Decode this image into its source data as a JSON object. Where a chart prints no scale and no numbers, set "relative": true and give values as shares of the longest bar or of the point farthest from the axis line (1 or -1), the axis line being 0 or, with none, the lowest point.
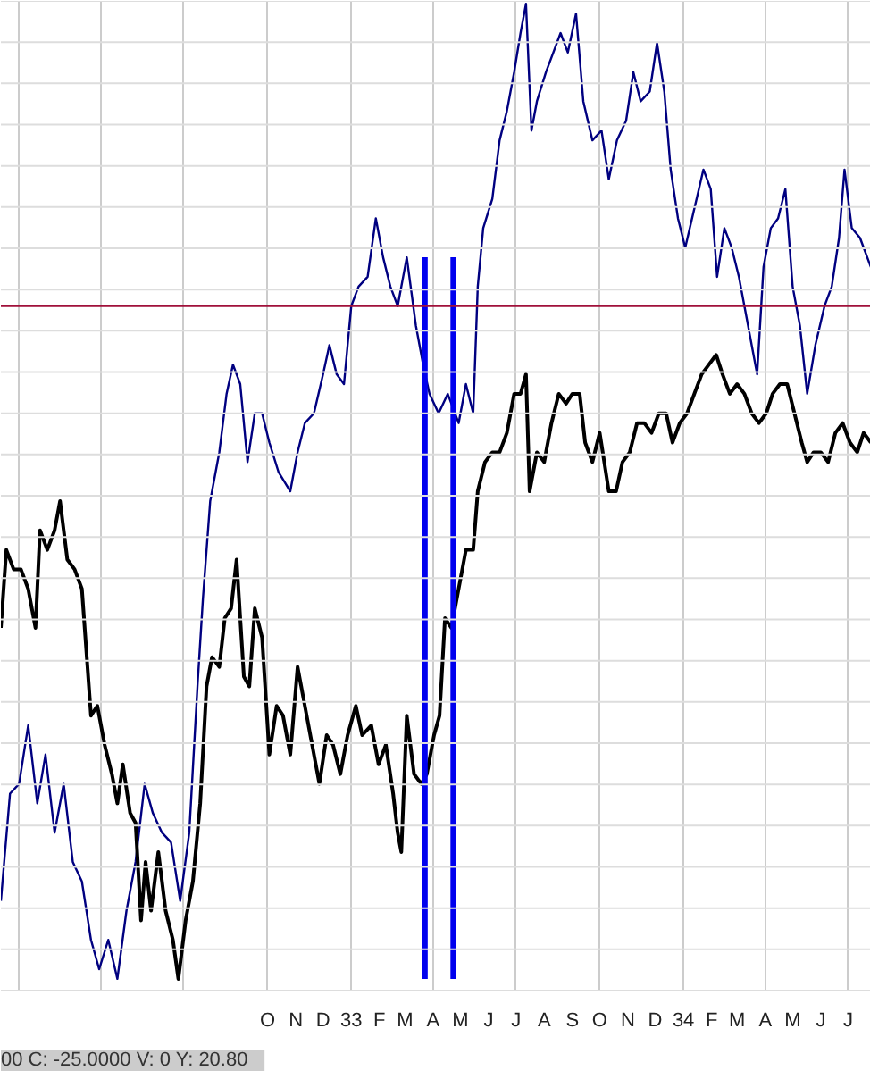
{
  "chart_data": {
    "type": "line",
    "relative": true,
    "grid": true,
    "xlim": [
      "1931-12-13",
      "1934-07-26"
    ],
    "xticks": [
      {
        "value": "1932-01-01",
        "label": null
      },
      {
        "value": "1932-04-01",
        "label": null
      },
      {
        "value": "1932-07-01",
        "label": null
      },
      {
        "value": "1932-10-01",
        "label": "O"
      },
      {
        "value": "1932-11-01",
        "label": "N"
      },
      {
        "value": "1932-12-01",
        "label": "D"
      },
      {
        "value": "1933-01-01",
        "label": "33"
      },
      {
        "value": "1933-02-01",
        "label": "F"
      },
      {
        "value": "1933-03-01",
        "label": "M"
      },
      {
        "value": "1933-04-01",
        "label": "A"
      },
      {
        "value": "1933-05-01",
        "label": "M"
      },
      {
        "value": "1933-06-01",
        "label": "J"
      },
      {
        "value": "1933-07-01",
        "label": "J"
      },
      {
        "value": "1933-08-01",
        "label": "A"
      },
      {
        "value": "1933-09-01",
        "label": "S"
      },
      {
        "value": "1933-10-01",
        "label": "O"
      },
      {
        "value": "1933-11-01",
        "label": "N"
      },
      {
        "value": "1933-12-01",
        "label": "D"
      },
      {
        "value": "1934-01-01",
        "label": "34"
      },
      {
        "value": "1934-02-01",
        "label": "F"
      },
      {
        "value": "1934-03-01",
        "label": "M"
      },
      {
        "value": "1934-04-01",
        "label": "A"
      },
      {
        "value": "1934-05-01",
        "label": "M"
      },
      {
        "value": "1934-06-01",
        "label": "J"
      },
      {
        "value": "1934-07-01",
        "label": "J"
      }
    ],
    "series": [
      {
        "color": "#000080",
        "x": [
          "1931-12-13",
          "1931-12-23",
          "1932-01-02",
          "1932-01-12",
          "1932-01-22",
          "1932-01-31",
          "1932-02-10",
          "1932-02-20",
          "1932-03-01",
          "1932-03-11",
          "1932-03-21",
          "1932-03-30",
          "1932-04-09",
          "1932-04-19",
          "1932-04-29",
          "1932-05-09",
          "1932-05-19",
          "1932-05-28",
          "1932-06-07",
          "1932-06-17",
          "1932-06-27",
          "1932-07-07",
          "1932-07-16",
          "1932-07-22",
          "1932-07-30",
          "1932-08-09",
          "1932-08-17",
          "1932-08-24",
          "1932-09-01",
          "1932-09-09",
          "1932-09-17",
          "1932-09-25",
          "1932-10-03",
          "1932-10-13",
          "1932-10-26",
          "1932-11-03",
          "1932-11-11",
          "1932-11-21",
          "1932-12-01",
          "1932-12-08",
          "1932-12-16",
          "1932-12-24",
          "1933-01-01",
          "1933-01-09",
          "1933-01-19",
          "1933-01-28",
          "1933-02-05",
          "1933-02-13",
          "1933-02-21",
          "1933-03-03",
          "1933-03-13",
          "1933-03-21",
          "1933-03-28",
          "1933-04-07",
          "1933-04-17",
          "1933-04-29",
          "1933-05-07",
          "1933-05-15",
          "1933-05-20",
          "1933-05-26",
          "1933-06-05",
          "1933-06-13",
          "1933-06-21",
          "1933-06-29",
          "1933-07-06",
          "1933-07-12",
          "1933-07-18",
          "1933-07-24",
          "1933-08-03",
          "1933-08-11",
          "1933-08-19",
          "1933-08-27",
          "1933-09-05",
          "1933-09-13",
          "1933-09-23",
          "1933-10-03",
          "1933-10-11",
          "1933-10-20",
          "1933-10-30",
          "1933-11-07",
          "1933-11-15",
          "1933-11-25",
          "1933-12-03",
          "1933-12-11",
          "1933-12-18",
          "1933-12-26",
          "1934-01-03",
          "1934-01-13",
          "1934-01-23",
          "1934-01-31",
          "1934-02-07",
          "1934-02-15",
          "1934-02-23",
          "1934-03-03",
          "1934-03-13",
          "1934-03-23",
          "1934-03-30",
          "1934-04-07",
          "1934-04-15",
          "1934-04-23",
          "1934-05-01",
          "1934-05-09",
          "1934-05-17",
          "1934-05-26",
          "1934-06-05",
          "1934-06-13",
          "1934-06-21",
          "1934-06-27",
          "1934-07-05",
          "1934-07-14",
          "1934-07-26"
        ],
        "values": [
          0.08,
          0.19,
          0.2,
          0.26,
          0.18,
          0.23,
          0.15,
          0.2,
          0.12,
          0.1,
          0.04,
          0.01,
          0.04,
          0.0,
          0.07,
          0.12,
          0.2,
          0.17,
          0.15,
          0.14,
          0.08,
          0.15,
          0.3,
          0.39,
          0.49,
          0.54,
          0.6,
          0.63,
          0.61,
          0.53,
          0.58,
          0.58,
          0.55,
          0.52,
          0.5,
          0.54,
          0.57,
          0.58,
          0.62,
          0.65,
          0.62,
          0.61,
          0.69,
          0.71,
          0.72,
          0.78,
          0.74,
          0.71,
          0.69,
          0.74,
          0.67,
          0.63,
          0.6,
          0.58,
          0.6,
          0.57,
          0.61,
          0.58,
          0.71,
          0.77,
          0.8,
          0.86,
          0.89,
          0.93,
          0.97,
          1.0,
          0.87,
          0.9,
          0.93,
          0.95,
          0.97,
          0.95,
          0.99,
          0.9,
          0.86,
          0.87,
          0.82,
          0.86,
          0.88,
          0.93,
          0.9,
          0.91,
          0.96,
          0.91,
          0.83,
          0.78,
          0.75,
          0.79,
          0.83,
          0.81,
          0.72,
          0.77,
          0.75,
          0.72,
          0.67,
          0.62,
          0.73,
          0.77,
          0.78,
          0.81,
          0.71,
          0.67,
          0.6,
          0.65,
          0.69,
          0.71,
          0.76,
          0.83,
          0.77,
          0.76,
          0.73
        ]
      },
      {
        "color": "#000000",
        "x": [
          "1931-12-13",
          "1931-12-19",
          "1931-12-27",
          "1932-01-04",
          "1932-01-12",
          "1932-01-20",
          "1932-01-25",
          "1932-02-02",
          "1932-02-10",
          "1932-02-16",
          "1932-02-24",
          "1932-03-03",
          "1932-03-11",
          "1932-03-21",
          "1932-03-28",
          "1932-04-05",
          "1932-04-13",
          "1932-04-19",
          "1932-04-25",
          "1932-05-03",
          "1932-05-09",
          "1932-05-15",
          "1932-05-20",
          "1932-05-26",
          "1932-06-03",
          "1932-06-11",
          "1932-06-19",
          "1932-06-25",
          "1932-07-03",
          "1932-07-11",
          "1932-07-19",
          "1932-07-26",
          "1932-08-01",
          "1932-08-09",
          "1932-08-15",
          "1932-08-22",
          "1932-08-28",
          "1932-09-05",
          "1932-09-11",
          "1932-09-17",
          "1932-09-25",
          "1932-10-03",
          "1932-10-11",
          "1932-10-18",
          "1932-10-26",
          "1932-11-03",
          "1932-11-11",
          "1932-11-19",
          "1932-11-27",
          "1932-12-05",
          "1932-12-12",
          "1932-12-20",
          "1932-12-28",
          "1933-01-06",
          "1933-01-13",
          "1933-01-23",
          "1933-01-31",
          "1933-02-08",
          "1933-02-16",
          "1933-02-21",
          "1933-02-25",
          "1933-03-03",
          "1933-03-11",
          "1933-03-19",
          "1933-03-25",
          "1933-04-02",
          "1933-04-08",
          "1933-04-14",
          "1933-04-21",
          "1933-04-29",
          "1933-05-07",
          "1933-05-15",
          "1933-05-20",
          "1933-05-28",
          "1933-06-05",
          "1933-06-13",
          "1933-06-21",
          "1933-06-29",
          "1933-07-06",
          "1933-07-12",
          "1933-07-16",
          "1933-07-24",
          "1933-08-01",
          "1933-08-09",
          "1933-08-17",
          "1933-08-25",
          "1933-09-01",
          "1933-09-09",
          "1933-09-15",
          "1933-09-23",
          "1933-10-01",
          "1933-10-11",
          "1933-10-19",
          "1933-10-26",
          "1933-11-03",
          "1933-11-11",
          "1933-11-19",
          "1933-11-27",
          "1933-12-05",
          "1933-12-13",
          "1933-12-20",
          "1933-12-28",
          "1934-01-05",
          "1934-01-13",
          "1934-01-21",
          "1934-01-29",
          "1934-02-06",
          "1934-02-13",
          "1934-02-21",
          "1934-03-01",
          "1934-03-09",
          "1934-03-17",
          "1934-03-25",
          "1934-04-02",
          "1934-04-09",
          "1934-04-17",
          "1934-04-25",
          "1934-05-03",
          "1934-05-11",
          "1934-05-17",
          "1934-05-24",
          "1934-06-01",
          "1934-06-09",
          "1934-06-17",
          "1934-06-25",
          "1934-07-03",
          "1934-07-11",
          "1934-07-18",
          "1934-07-26"
        ],
        "values": [
          0.36,
          0.44,
          0.42,
          0.42,
          0.4,
          0.36,
          0.46,
          0.44,
          0.46,
          0.49,
          0.43,
          0.42,
          0.4,
          0.27,
          0.28,
          0.24,
          0.21,
          0.18,
          0.22,
          0.17,
          0.16,
          0.06,
          0.12,
          0.07,
          0.13,
          0.07,
          0.04,
          0.0,
          0.06,
          0.1,
          0.18,
          0.3,
          0.33,
          0.32,
          0.37,
          0.38,
          0.43,
          0.31,
          0.3,
          0.38,
          0.35,
          0.23,
          0.28,
          0.27,
          0.23,
          0.32,
          0.28,
          0.24,
          0.2,
          0.25,
          0.24,
          0.21,
          0.25,
          0.28,
          0.25,
          0.26,
          0.22,
          0.24,
          0.19,
          0.15,
          0.13,
          0.27,
          0.21,
          0.2,
          0.21,
          0.25,
          0.27,
          0.37,
          0.36,
          0.4,
          0.44,
          0.44,
          0.5,
          0.53,
          0.54,
          0.54,
          0.56,
          0.6,
          0.6,
          0.62,
          0.5,
          0.54,
          0.53,
          0.57,
          0.6,
          0.59,
          0.6,
          0.6,
          0.55,
          0.53,
          0.56,
          0.5,
          0.5,
          0.53,
          0.54,
          0.57,
          0.57,
          0.56,
          0.58,
          0.58,
          0.55,
          0.57,
          0.58,
          0.6,
          0.62,
          0.63,
          0.64,
          0.62,
          0.6,
          0.61,
          0.6,
          0.58,
          0.57,
          0.58,
          0.6,
          0.61,
          0.61,
          0.58,
          0.55,
          0.53,
          0.54,
          0.54,
          0.53,
          0.56,
          0.57,
          0.55,
          0.54,
          0.56,
          0.55
        ]
      },
      {
        "type": "bar",
        "color": "#0000ee",
        "x": [
          "1933-03-23",
          "1933-04-23"
        ],
        "values": [
          0.74,
          0.74
        ]
      }
    ],
    "ref_lines": [
      {
        "axis": "y",
        "value": 0.69,
        "color": "#a0103a"
      }
    ],
    "annotations": [
      "00  C: -25.0000  V: 0  Y: 20.80"
    ]
  }
}
